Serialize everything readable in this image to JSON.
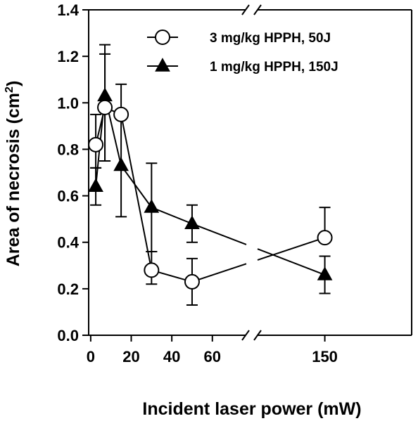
{
  "chart_data": {
    "type": "line",
    "xlabel": "Incident laser power (mW)",
    "ylabel": "Area of necrosis (cm²)",
    "ylabel_parts": {
      "main": "Area of necrosis (cm",
      "superscript": "2",
      "close": ")"
    },
    "ylim": [
      0,
      1.4
    ],
    "y_ticks": [
      {
        "value": 0.0,
        "label": "0.0"
      },
      {
        "value": 0.2,
        "label": "0.2"
      },
      {
        "value": 0.4,
        "label": "0.4"
      },
      {
        "value": 0.6,
        "label": "0.6"
      },
      {
        "value": 0.8,
        "label": "0.8"
      },
      {
        "value": 1.0,
        "label": "1.0"
      },
      {
        "value": 1.2,
        "label": "1.2"
      },
      {
        "value": 1.4,
        "label": "1.4"
      }
    ],
    "x_axis": {
      "broken": true,
      "segment1_range": [
        -1,
        75
      ],
      "break_at": 75,
      "segment2_range": [
        120,
        190
      ],
      "ticks": [
        {
          "value": 0,
          "label": "0"
        },
        {
          "value": 20,
          "label": "20"
        },
        {
          "value": 40,
          "label": "40"
        },
        {
          "value": 60,
          "label": "60"
        },
        {
          "value": 150,
          "label": "150"
        }
      ]
    },
    "series": [
      {
        "name": "3 mg/kg HPPH, 50J",
        "marker": "circle-open",
        "points": [
          {
            "x": 2.5,
            "y": 0.82,
            "err_up": 0.13,
            "err_down": 0.1
          },
          {
            "x": 7,
            "y": 0.98,
            "err_up": 0.23,
            "err_down": 0.23
          },
          {
            "x": 15,
            "y": 0.95,
            "err_up": 0.0,
            "err_down": 0.0
          },
          {
            "x": 30,
            "y": 0.28,
            "err_up": 0.08,
            "err_down": 0.06
          },
          {
            "x": 50,
            "y": 0.23,
            "err_up": 0.1,
            "err_down": 0.1
          },
          {
            "x": 150,
            "y": 0.42,
            "err_up": 0.13,
            "err_down": 0.0
          }
        ]
      },
      {
        "name": "1 mg/kg HPPH, 150J",
        "marker": "triangle-filled",
        "points": [
          {
            "x": 2.5,
            "y": 0.64,
            "err_up": 0.08,
            "err_down": 0.08
          },
          {
            "x": 7,
            "y": 1.03,
            "err_up": 0.22,
            "err_down": 0.28
          },
          {
            "x": 15,
            "y": 0.73,
            "err_up": 0.35,
            "err_down": 0.22
          },
          {
            "x": 30,
            "y": 0.55,
            "err_up": 0.19,
            "err_down": 0.19
          },
          {
            "x": 50,
            "y": 0.48,
            "err_up": 0.08,
            "err_down": 0.08
          },
          {
            "x": 150,
            "y": 0.26,
            "err_up": 0.08,
            "err_down": 0.08
          }
        ]
      }
    ],
    "legend": {
      "placement": "top-right"
    },
    "grid": false
  }
}
